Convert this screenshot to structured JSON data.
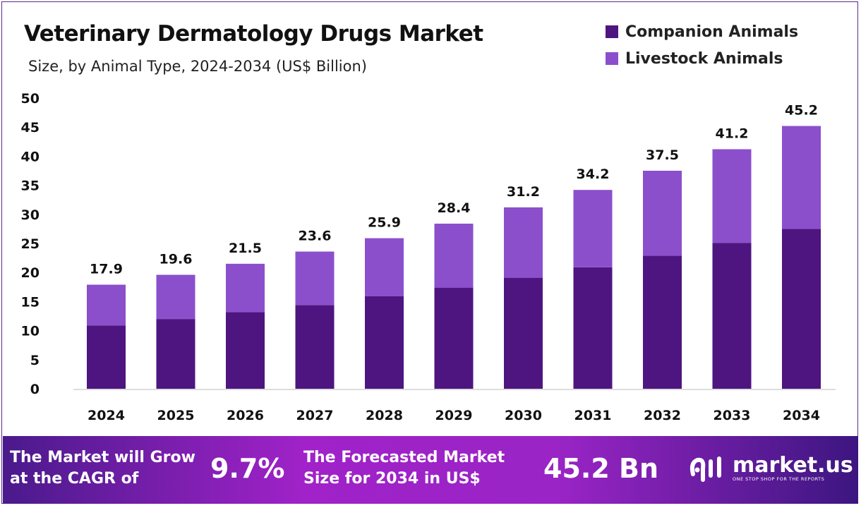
{
  "chart_data": {
    "type": "bar",
    "stacked": true,
    "title": "Veterinary Dermatology Drugs Market",
    "subtitle": "Size, by Animal Type, 2024-2034 (US$ Billion)",
    "categories": [
      "2024",
      "2025",
      "2026",
      "2027",
      "2028",
      "2029",
      "2030",
      "2031",
      "2032",
      "2033",
      "2034"
    ],
    "series": [
      {
        "name": "Companion Animals",
        "color": "#4e1580",
        "values": [
          10.9,
          12.0,
          13.2,
          14.4,
          15.9,
          17.4,
          19.1,
          20.9,
          22.9,
          25.1,
          27.5
        ]
      },
      {
        "name": "Livestock Animals",
        "color": "#8b4fcc",
        "values": [
          7.0,
          7.6,
          8.3,
          9.2,
          10.0,
          11.0,
          12.1,
          13.3,
          14.6,
          16.1,
          17.7
        ]
      }
    ],
    "totals": [
      "17.9",
      "19.6",
      "21.5",
      "23.6",
      "25.9",
      "28.4",
      "31.2",
      "34.2",
      "37.5",
      "41.2",
      "45.2"
    ],
    "ylim": [
      0,
      50
    ],
    "yticks": [
      "0",
      "5",
      "10",
      "15",
      "20",
      "25",
      "30",
      "35",
      "40",
      "45",
      "50"
    ],
    "grid": false,
    "legend_position": "top-right"
  },
  "footer": {
    "cagr_text_1": "The Market will Grow",
    "cagr_text_2": "at the CAGR of",
    "cagr_value": "9.7%",
    "forecast_text_1": "The Forecasted Market",
    "forecast_text_2": "Size for 2034 in US$",
    "forecast_value": "45.2 Bn",
    "logo_name": "market.us",
    "logo_tagline": "ONE STOP SHOP FOR THE REPORTS"
  }
}
